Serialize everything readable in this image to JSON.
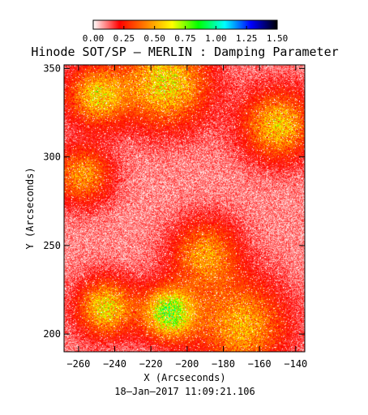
{
  "chart_data": {
    "type": "heatmap",
    "title": "Hinode SOT/SP – MERLIN : Damping Parameter",
    "xlabel": "X (Arcseconds)",
    "ylabel": "Y (Arcseconds)",
    "xlim": [
      -268,
      -135
    ],
    "ylim": [
      190,
      352
    ],
    "xticks": [
      -260,
      -240,
      -220,
      -200,
      -180,
      -160,
      -140
    ],
    "xtick_labels": [
      "−260",
      "−240",
      "−220",
      "−200",
      "−180",
      "−160",
      "−140"
    ],
    "yticks": [
      200,
      250,
      300,
      350
    ],
    "ytick_labels": [
      "200",
      "250",
      "300",
      "350"
    ],
    "colorbar": {
      "range": [
        0.0,
        1.5
      ],
      "ticks": [
        0.0,
        0.25,
        0.5,
        0.75,
        1.0,
        1.25,
        1.5
      ],
      "tick_labels": [
        "0.00",
        "0.25",
        "0.50",
        "0.75",
        "1.00",
        "1.25",
        "1.50"
      ],
      "colormap": [
        "#ffffff",
        "#ff0000",
        "#ff8000",
        "#ffff00",
        "#00ff00",
        "#00ffff",
        "#0000ff",
        "#000000"
      ]
    },
    "typical_value": 0.1,
    "enhanced_regions": [
      {
        "x": -250,
        "y": 335,
        "peak": 0.55
      },
      {
        "x": -212,
        "y": 342,
        "peak": 0.6
      },
      {
        "x": -150,
        "y": 318,
        "peak": 0.55
      },
      {
        "x": -258,
        "y": 290,
        "peak": 0.45
      },
      {
        "x": -190,
        "y": 245,
        "peak": 0.45
      },
      {
        "x": -210,
        "y": 212,
        "peak": 0.8
      },
      {
        "x": -245,
        "y": 215,
        "peak": 0.6
      },
      {
        "x": -170,
        "y": 205,
        "peak": 0.5
      }
    ],
    "timestamp": "18–Jan–2017 11:09:21.106"
  }
}
